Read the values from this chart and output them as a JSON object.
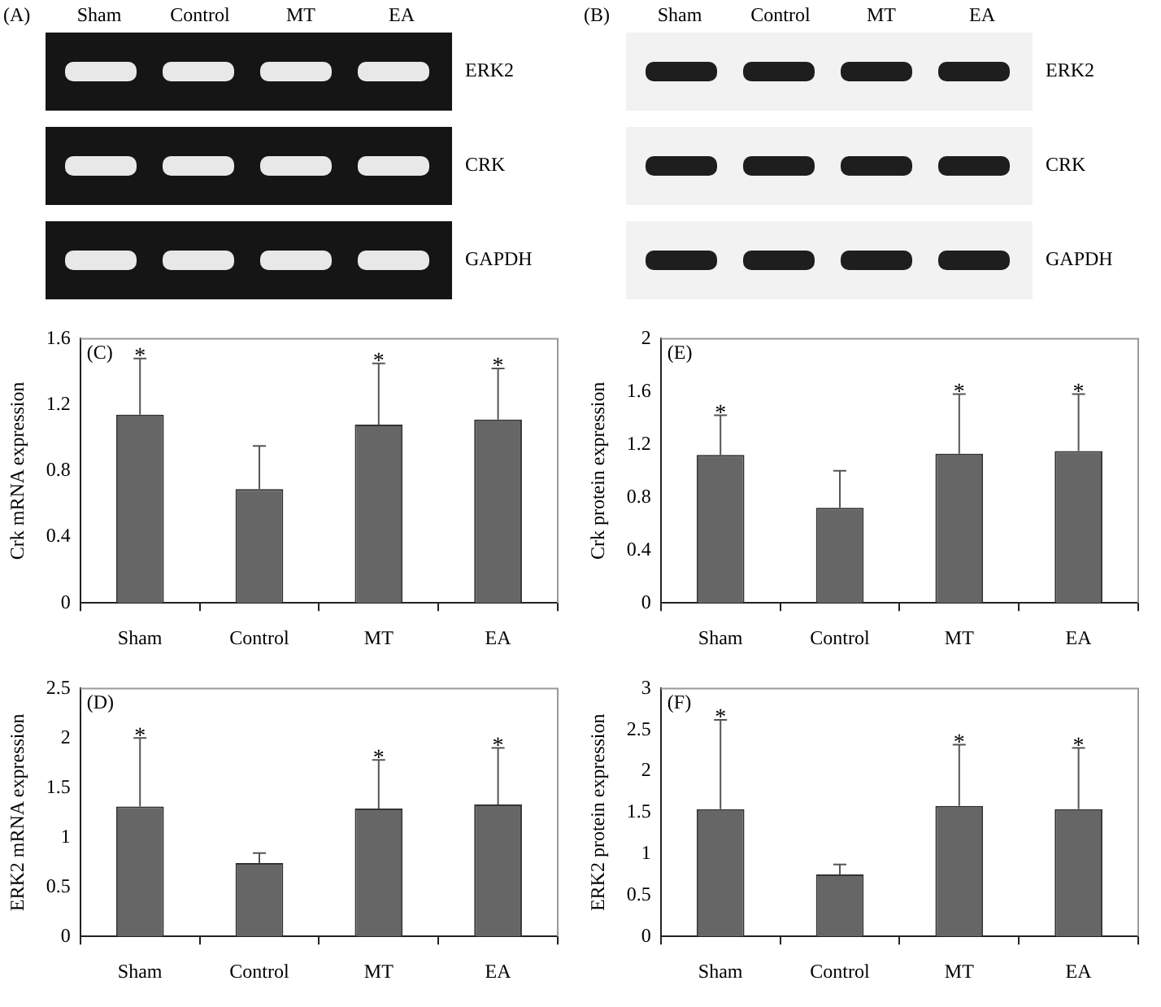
{
  "chart_data": [
    {
      "type": "other",
      "title": "(A)",
      "categories": [
        "Sham",
        "Control",
        "MT",
        "EA"
      ],
      "y_categories": [
        "ERK2",
        "CRK",
        "GAPDH"
      ]
    },
    {
      "type": "other",
      "title": "(B)",
      "categories": [
        "Sham",
        "Control",
        "MT",
        "EA"
      ],
      "y_categories": [
        "ERK2",
        "CRK",
        "GAPDH"
      ]
    },
    {
      "type": "bar",
      "ylabel": "Crk mRNA expression",
      "categories": [
        "Sham",
        "Control",
        "MT",
        "EA"
      ],
      "values": [
        1.14,
        0.69,
        1.08,
        1.11
      ],
      "errors": [
        [
          1.14,
          1.48
        ],
        [
          0.69,
          0.95
        ],
        [
          1.08,
          1.45
        ],
        [
          1.11,
          1.42
        ]
      ],
      "color": "#666666",
      "ylim": [
        0,
        1.6
      ],
      "yticks": [
        0,
        0.4,
        0.8,
        1.2,
        1.6
      ],
      "grid": false,
      "annotations": [
        "(C)",
        {
          "text": "*",
          "x": "Sham",
          "y": 1.48
        },
        {
          "text": "*",
          "x": "MT",
          "y": 1.45
        },
        {
          "text": "*",
          "x": "EA",
          "y": 1.42
        }
      ]
    },
    {
      "type": "bar",
      "ylabel": "Crk protein expression",
      "categories": [
        "Sham",
        "Control",
        "MT",
        "EA"
      ],
      "values": [
        1.12,
        0.72,
        1.13,
        1.15
      ],
      "errors": [
        [
          1.12,
          1.42
        ],
        [
          0.72,
          1.0
        ],
        [
          1.13,
          1.58
        ],
        [
          1.15,
          1.58
        ]
      ],
      "color": "#666666",
      "ylim": [
        0,
        2
      ],
      "yticks": [
        0,
        0.4,
        0.8,
        1.2,
        1.6,
        2
      ],
      "grid": false,
      "annotations": [
        "(E)",
        {
          "text": "*",
          "x": "Sham",
          "y": 1.42
        },
        {
          "text": "*",
          "x": "MT",
          "y": 1.58
        },
        {
          "text": "*",
          "x": "EA",
          "y": 1.58
        }
      ]
    },
    {
      "type": "bar",
      "ylabel": "ERK2 mRNA expression",
      "categories": [
        "Sham",
        "Control",
        "MT",
        "EA"
      ],
      "values": [
        1.31,
        0.74,
        1.29,
        1.33
      ],
      "errors": [
        [
          1.31,
          2.0
        ],
        [
          0.74,
          0.84
        ],
        [
          1.29,
          1.78
        ],
        [
          1.33,
          1.9
        ]
      ],
      "color": "#666666",
      "ylim": [
        0,
        2.5
      ],
      "yticks": [
        0,
        0.5,
        1,
        1.5,
        2,
        2.5
      ],
      "grid": false,
      "annotations": [
        "(D)",
        {
          "text": "*",
          "x": "Sham",
          "y": 2.0
        },
        {
          "text": "*",
          "x": "MT",
          "y": 1.78
        },
        {
          "text": "*",
          "x": "EA",
          "y": 1.9
        }
      ]
    },
    {
      "type": "bar",
      "ylabel": "ERK2 protein expression",
      "categories": [
        "Sham",
        "Control",
        "MT",
        "EA"
      ],
      "values": [
        1.54,
        0.75,
        1.58,
        1.54
      ],
      "errors": [
        [
          1.54,
          2.62
        ],
        [
          0.75,
          0.87
        ],
        [
          1.58,
          2.32
        ],
        [
          1.54,
          2.28
        ]
      ],
      "color": "#666666",
      "ylim": [
        0,
        3
      ],
      "yticks": [
        0,
        0.5,
        1,
        1.5,
        2,
        2.5,
        3
      ],
      "grid": false,
      "annotations": [
        "(F)",
        {
          "text": "*",
          "x": "Sham",
          "y": 2.62
        },
        {
          "text": "*",
          "x": "MT",
          "y": 2.32
        },
        {
          "text": "*",
          "x": "EA",
          "y": 2.28
        }
      ]
    }
  ]
}
